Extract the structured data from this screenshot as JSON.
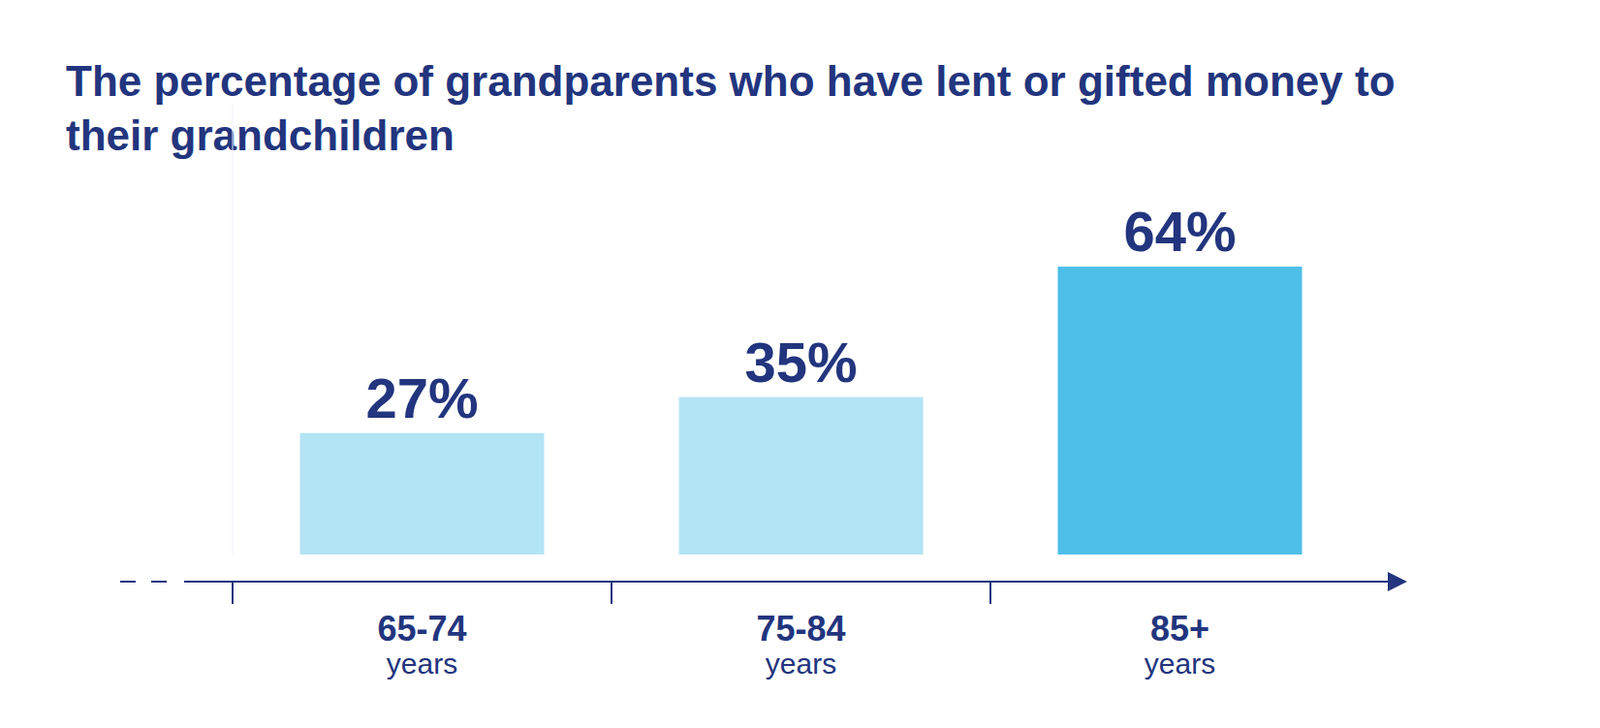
{
  "chart_data": {
    "type": "bar",
    "title": "The percentage of grandparents who have lent or gifted money to their grandchildren",
    "categories": [
      "65-74 years",
      "75-84 years",
      "85+ years"
    ],
    "values": [
      27,
      35,
      64
    ],
    "value_labels": [
      "27%",
      "35%",
      "64%"
    ],
    "colors": [
      "#b3e4f4",
      "#b3e4f4",
      "#4dbfe9"
    ],
    "ylim": [
      0,
      100
    ],
    "data_labels": true,
    "tick_labels": "x",
    "grid": false
  }
}
